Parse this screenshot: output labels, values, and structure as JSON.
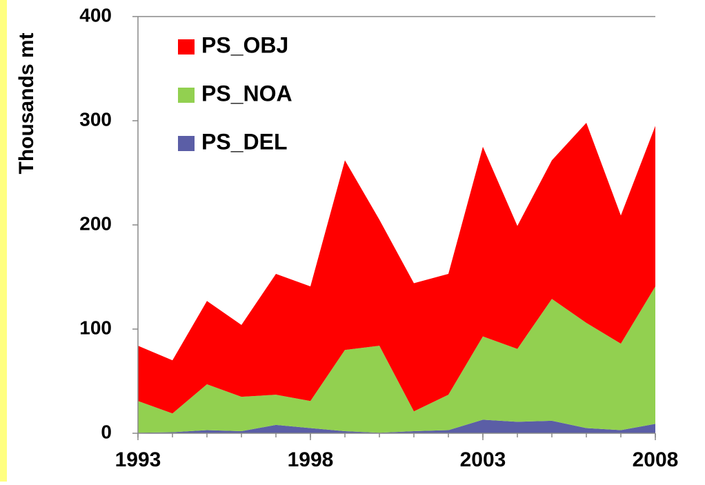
{
  "chart_data": {
    "type": "stacked-area",
    "y_label": "Thousands mt",
    "x": [
      1993,
      1994,
      1995,
      1996,
      1997,
      1998,
      1999,
      2000,
      2001,
      2002,
      2003,
      2004,
      2005,
      2006,
      2007,
      2008
    ],
    "series": [
      {
        "name": "PS_DEL",
        "color": "#5b5ea6",
        "values": [
          0.5,
          1,
          3,
          2,
          8,
          5,
          2,
          0.5,
          2,
          3,
          13,
          11,
          12,
          5,
          3,
          9
        ]
      },
      {
        "name": "PS_NOA",
        "color": "#92d050",
        "values": [
          30.5,
          18,
          44,
          33,
          29,
          26,
          78,
          83.5,
          19,
          34,
          80,
          70,
          117,
          101,
          83,
          132
        ]
      },
      {
        "name": "PS_OBJ",
        "color": "#ff0000",
        "values": [
          53,
          51,
          80,
          69,
          116,
          110,
          182,
          121,
          123,
          116,
          182,
          118,
          133,
          192,
          123,
          154
        ]
      }
    ],
    "xlim": [
      1993,
      2008
    ],
    "xticks": [
      1993,
      1998,
      2003,
      2008
    ],
    "ylim": [
      0,
      400
    ],
    "yticks": [
      0,
      100,
      200,
      300,
      400
    ],
    "legend": "top-left"
  }
}
